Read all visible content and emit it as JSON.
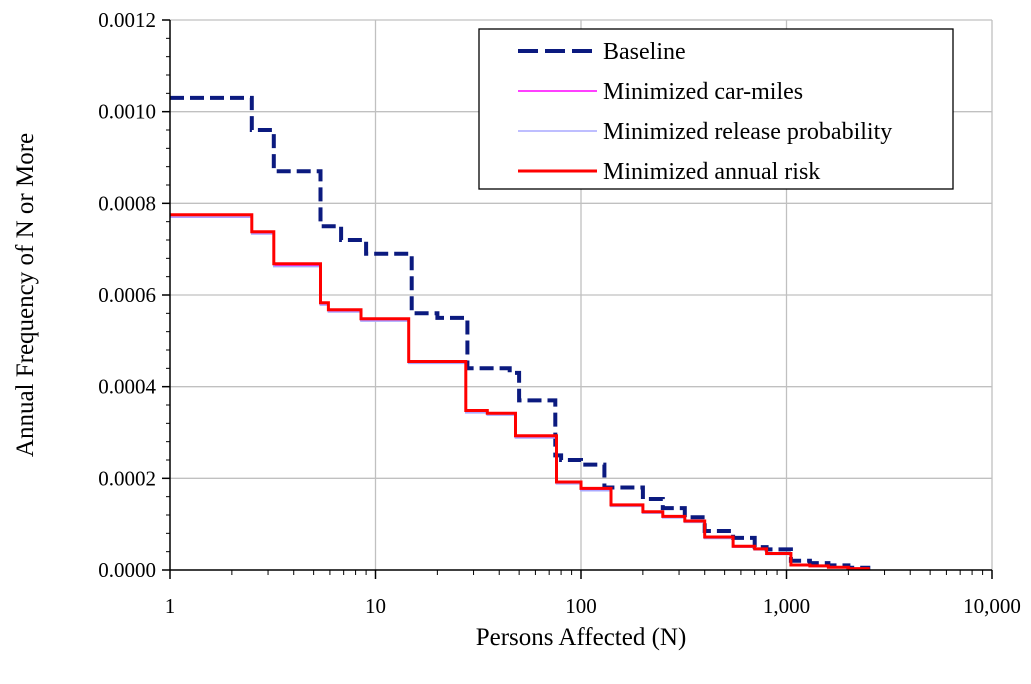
{
  "chart_data": {
    "type": "line",
    "title": "",
    "xlabel": "Persons Affected (N)",
    "ylabel": "Annual Frequency of N or More",
    "x_scale": "log",
    "xlim": [
      1,
      10000
    ],
    "ylim": [
      0,
      0.0012
    ],
    "grid": true,
    "legend_position": "top-right",
    "x_ticks": [
      1,
      10,
      100,
      1000,
      10000
    ],
    "x_tick_labels": [
      "1",
      "10",
      "100",
      "1,000",
      "10,000"
    ],
    "y_ticks": [
      0,
      0.0002,
      0.0004,
      0.0006,
      0.0008,
      0.001,
      0.0012
    ],
    "y_tick_labels": [
      "0.0000",
      "0.0002",
      "0.0004",
      "0.0006",
      "0.0008",
      "0.0010",
      "0.0012"
    ],
    "series": [
      {
        "name": "Baseline",
        "color": "#0b1a7f",
        "style": "dashed",
        "x": [
          1,
          2.5,
          3.2,
          5.4,
          6.8,
          9,
          15,
          20,
          28,
          45,
          50,
          75,
          80,
          100,
          130,
          200,
          250,
          320,
          400,
          550,
          700,
          800,
          1050,
          1300,
          1600,
          2000,
          2500
        ],
        "y": [
          0.00103,
          0.00096,
          0.00087,
          0.00075,
          0.00072,
          0.00069,
          0.00056,
          0.00055,
          0.00044,
          0.00043,
          0.00037,
          0.00025,
          0.00024,
          0.00023,
          0.00018,
          0.000155,
          0.000135,
          0.000115,
          8.5e-05,
          7e-05,
          5e-05,
          4.5e-05,
          2e-05,
          1.5e-05,
          1e-05,
          5e-06,
          0
        ]
      },
      {
        "name": "Minimized car-miles",
        "color": "#ff00ff",
        "style": "solid",
        "x": [
          1,
          2.5,
          3.2,
          5.4,
          5.9,
          8.5,
          14.5,
          27.5,
          35,
          48,
          76,
          100,
          140,
          200,
          250,
          320,
          400,
          550,
          700,
          800,
          1050,
          1300,
          1600,
          2000,
          2500
        ],
        "y": [
          0.00077,
          0.000735,
          0.000665,
          0.00058,
          0.000565,
          0.000545,
          0.000453,
          0.000345,
          0.00034,
          0.00029,
          0.00019,
          0.000175,
          0.00014,
          0.000125,
          0.000115,
          0.000105,
          7e-05,
          5e-05,
          4.5e-05,
          3.5e-05,
          1e-05,
          8e-06,
          5e-06,
          3e-06,
          0
        ]
      },
      {
        "name": "Minimized release probability",
        "color": "#a9a9ff",
        "style": "solid",
        "x": [
          1,
          2.5,
          3.2,
          5.4,
          5.9,
          8.5,
          14.5,
          27.5,
          35,
          48,
          76,
          100,
          140,
          200,
          250,
          320,
          400,
          550,
          700,
          800,
          1050,
          1300,
          1600,
          2000,
          2500
        ],
        "y": [
          0.00077,
          0.000733,
          0.000662,
          0.000578,
          0.000563,
          0.000543,
          0.000451,
          0.000343,
          0.000338,
          0.000288,
          0.000188,
          0.000173,
          0.000139,
          0.000124,
          0.000114,
          0.000104,
          6.9e-05,
          5e-05,
          4.4e-05,
          3.4e-05,
          1e-05,
          8e-06,
          5e-06,
          3e-06,
          0
        ]
      },
      {
        "name": "Minimized annual risk",
        "color": "#ff0000",
        "style": "solid",
        "x": [
          1,
          2.5,
          3.2,
          5.4,
          5.9,
          8.5,
          14.5,
          27.5,
          35,
          48,
          76,
          100,
          140,
          200,
          250,
          320,
          400,
          550,
          700,
          800,
          1050,
          1300,
          1600,
          2000,
          2500
        ],
        "y": [
          0.000775,
          0.000738,
          0.000668,
          0.000583,
          0.000568,
          0.000548,
          0.000455,
          0.000348,
          0.000342,
          0.000293,
          0.000192,
          0.000178,
          0.000142,
          0.000127,
          0.000117,
          0.000107,
          7.2e-05,
          5.2e-05,
          4.6e-05,
          3.6e-05,
          1.1e-05,
          9e-06,
          6e-06,
          3e-06,
          0
        ]
      }
    ]
  }
}
